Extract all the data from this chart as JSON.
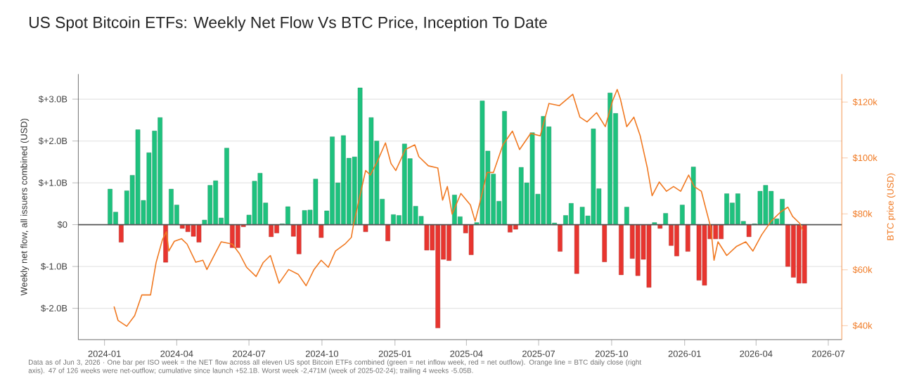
{
  "chart_data": {
    "type": "bar",
    "title": "US Spot Bitcoin ETFs: Weekly Net Flow Vs BTC Price, Inception To Date",
    "ylabel": "Weekly net flow, all issuers combined (USD)",
    "y2label": "BTC price (USD)",
    "annotations": [
      "Data as of Jun 3, 2026 · One bar per ISO week = the NET flow across all eleven US spot Bitcoin ETFs combined (green = net inflow week, red = net outflow). Orange line = BTC daily close (right axis). 47 of 126 weeks were net-outflow; cumulative since launch +52.1B. Worst week -2,471M (week of 2025-02-24); trailing 4 weeks -5.05B."
    ],
    "x": [
      "2024-01-08",
      "2024-01-15",
      "2024-01-22",
      "2024-01-29",
      "2024-02-05",
      "2024-02-12",
      "2024-02-19",
      "2024-02-26",
      "2024-03-04",
      "2024-03-11",
      "2024-03-18",
      "2024-03-25",
      "2024-04-01",
      "2024-04-08",
      "2024-04-15",
      "2024-04-22",
      "2024-04-29",
      "2024-05-06",
      "2024-05-13",
      "2024-05-20",
      "2024-05-27",
      "2024-06-03",
      "2024-06-10",
      "2024-06-17",
      "2024-06-24",
      "2024-07-01",
      "2024-07-08",
      "2024-07-15",
      "2024-07-22",
      "2024-07-29",
      "2024-08-05",
      "2024-08-12",
      "2024-08-19",
      "2024-08-26",
      "2024-09-02",
      "2024-09-09",
      "2024-09-16",
      "2024-09-23",
      "2024-09-30",
      "2024-10-07",
      "2024-10-14",
      "2024-10-21",
      "2024-10-28",
      "2024-11-04",
      "2024-11-11",
      "2024-11-18",
      "2024-11-25",
      "2024-12-02",
      "2024-12-09",
      "2024-12-16",
      "2024-12-23",
      "2024-12-30",
      "2025-01-06",
      "2025-01-13",
      "2025-01-20",
      "2025-01-27",
      "2025-02-03",
      "2025-02-10",
      "2025-02-17",
      "2025-02-24",
      "2025-03-03",
      "2025-03-10",
      "2025-03-17",
      "2025-03-24",
      "2025-03-31",
      "2025-04-07",
      "2025-04-14",
      "2025-04-21",
      "2025-04-28",
      "2025-05-05",
      "2025-05-12",
      "2025-05-19",
      "2025-05-26",
      "2025-06-02",
      "2025-06-09",
      "2025-06-16",
      "2025-06-23",
      "2025-06-30",
      "2025-07-07",
      "2025-07-14",
      "2025-07-21",
      "2025-07-28",
      "2025-08-04",
      "2025-08-11",
      "2025-08-18",
      "2025-08-25",
      "2025-09-01",
      "2025-09-08",
      "2025-09-15",
      "2025-09-22",
      "2025-09-29",
      "2025-10-06",
      "2025-10-13",
      "2025-10-20",
      "2025-10-27",
      "2025-11-03",
      "2025-11-10",
      "2025-11-17",
      "2025-11-24",
      "2025-12-01",
      "2025-12-08",
      "2025-12-15",
      "2025-12-22",
      "2025-12-29",
      "2026-01-05",
      "2026-01-12",
      "2026-01-19",
      "2026-01-26",
      "2026-02-02",
      "2026-02-09",
      "2026-02-16",
      "2026-02-23",
      "2026-03-02",
      "2026-03-09",
      "2026-03-16",
      "2026-03-23",
      "2026-03-30",
      "2026-04-06",
      "2026-04-13",
      "2026-04-20",
      "2026-04-27",
      "2026-05-04",
      "2026-05-11",
      "2026-05-18",
      "2026-05-25",
      "2026-06-01"
    ],
    "series": [
      {
        "values": [
          0.85,
          0.3,
          -0.42,
          0.81,
          1.18,
          2.27,
          0.58,
          1.72,
          2.24,
          2.56,
          -0.9,
          0.85,
          0.47,
          -0.09,
          -0.17,
          -0.28,
          -0.42,
          0.11,
          0.94,
          1.05,
          0.16,
          1.83,
          -0.55,
          -0.55,
          -0.05,
          0.23,
          1.04,
          1.23,
          0.52,
          -0.29,
          -0.2,
          0.02,
          0.43,
          -0.28,
          -0.7,
          0.34,
          0.35,
          1.09,
          -0.31,
          0.33,
          2.1,
          1.0,
          2.13,
          1.59,
          1.62,
          3.27,
          -0.17,
          2.56,
          2.0,
          0.61,
          -0.39,
          0.24,
          0.22,
          1.93,
          1.58,
          0.44,
          0.2,
          -0.61,
          -0.61,
          -2.47,
          -0.83,
          -0.86,
          0.71,
          0.19,
          -0.2,
          -0.72,
          0.05,
          2.96,
          1.76,
          1.21,
          0.56,
          2.71,
          -0.18,
          -0.11,
          1.37,
          1.0,
          2.2,
          0.73,
          2.59,
          2.34,
          0.04,
          -0.64,
          0.22,
          0.51,
          -1.17,
          0.42,
          0.21,
          2.29,
          0.86,
          -0.89,
          3.15,
          2.66,
          -1.2,
          0.42,
          -0.81,
          -1.22,
          -0.83,
          -1.5,
          0.05,
          -0.09,
          0.27,
          -0.5,
          -0.75,
          0.47,
          -0.64,
          1.38,
          -1.33,
          -1.45,
          -0.34,
          -0.34,
          -0.34,
          0.74,
          0.52,
          0.74,
          0.08,
          -0.29,
          0.02,
          0.8,
          0.94,
          0.8,
          0.14,
          0.61,
          -1.0,
          -1.26,
          -1.4,
          -1.4
        ],
        "colors": [
          "#1ec27e",
          "#1ec27e",
          "#e8352f",
          "#1ec27e",
          "#1ec27e",
          "#1ec27e",
          "#1ec27e",
          "#1ec27e",
          "#1ec27e",
          "#1ec27e",
          "#e8352f",
          "#1ec27e",
          "#1ec27e",
          "#e8352f",
          "#e8352f",
          "#e8352f",
          "#e8352f",
          "#1ec27e",
          "#1ec27e",
          "#1ec27e",
          "#1ec27e",
          "#1ec27e",
          "#e8352f",
          "#e8352f",
          "#e8352f",
          "#1ec27e",
          "#1ec27e",
          "#1ec27e",
          "#1ec27e",
          "#e8352f",
          "#e8352f",
          "#1ec27e",
          "#1ec27e",
          "#e8352f",
          "#e8352f",
          "#1ec27e",
          "#1ec27e",
          "#1ec27e",
          "#e8352f",
          "#1ec27e",
          "#1ec27e",
          "#1ec27e",
          "#1ec27e",
          "#1ec27e",
          "#1ec27e",
          "#1ec27e",
          "#e8352f",
          "#1ec27e",
          "#1ec27e",
          "#1ec27e",
          "#e8352f",
          "#1ec27e",
          "#1ec27e",
          "#1ec27e",
          "#1ec27e",
          "#1ec27e",
          "#1ec27e",
          "#e8352f",
          "#e8352f",
          "#e8352f",
          "#e8352f",
          "#e8352f",
          "#1ec27e",
          "#1ec27e",
          "#e8352f",
          "#e8352f",
          "#1ec27e",
          "#1ec27e",
          "#1ec27e",
          "#1ec27e",
          "#1ec27e",
          "#1ec27e",
          "#e8352f",
          "#e8352f",
          "#1ec27e",
          "#1ec27e",
          "#1ec27e",
          "#1ec27e",
          "#1ec27e",
          "#1ec27e",
          "#1ec27e",
          "#e8352f",
          "#1ec27e",
          "#1ec27e",
          "#e8352f",
          "#1ec27e",
          "#1ec27e",
          "#1ec27e",
          "#1ec27e",
          "#e8352f",
          "#1ec27e",
          "#1ec27e",
          "#e8352f",
          "#1ec27e",
          "#e8352f",
          "#e8352f",
          "#e8352f",
          "#e8352f",
          "#1ec27e",
          "#e8352f",
          "#1ec27e",
          "#e8352f",
          "#e8352f",
          "#1ec27e",
          "#e8352f",
          "#1ec27e",
          "#e8352f",
          "#e8352f",
          "#e8352f",
          "#e8352f",
          "#e8352f",
          "#1ec27e",
          "#1ec27e",
          "#1ec27e",
          "#1ec27e",
          "#e8352f",
          "#1ec27e",
          "#1ec27e",
          "#1ec27e",
          "#1ec27e",
          "#1ec27e",
          "#1ec27e",
          "#e8352f",
          "#e8352f",
          "#e8352f",
          "#e8352f"
        ]
      },
      {
        "type": "line",
        "axis": "y2",
        "color": "#f07820",
        "x": [
          "2024-01-13",
          "2024-01-18",
          "2024-01-29",
          "2024-02-08",
          "2024-02-17",
          "2024-02-28",
          "2024-03-06",
          "2024-03-14",
          "2024-03-19",
          "2024-03-22",
          "2024-03-29",
          "2024-04-07",
          "2024-04-14",
          "2024-04-25",
          "2024-05-04",
          "2024-05-09",
          "2024-05-18",
          "2024-05-27",
          "2024-06-10",
          "2024-06-19",
          "2024-06-28",
          "2024-07-10",
          "2024-07-19",
          "2024-07-28",
          "2024-08-08",
          "2024-08-20",
          "2024-09-01",
          "2024-09-11",
          "2024-09-21",
          "2024-09-30",
          "2024-10-09",
          "2024-10-18",
          "2024-10-30",
          "2024-11-07",
          "2024-11-10",
          "2024-11-25",
          "2024-12-01",
          "2024-12-10",
          "2024-12-20",
          "2024-12-27",
          "2025-01-02",
          "2025-01-14",
          "2025-01-26",
          "2025-01-31",
          "2025-02-12",
          "2025-02-24",
          "2025-03-02",
          "2025-03-08",
          "2025-03-14",
          "2025-03-25",
          "2025-04-06",
          "2025-04-12",
          "2025-04-18",
          "2025-04-27",
          "2025-05-05",
          "2025-05-17",
          "2025-05-29",
          "2025-06-07",
          "2025-06-21",
          "2025-07-03",
          "2025-07-14",
          "2025-07-27",
          "2025-08-13",
          "2025-08-22",
          "2025-08-31",
          "2025-09-12",
          "2025-09-23",
          "2025-10-02",
          "2025-10-08",
          "2025-10-12",
          "2025-10-20",
          "2025-10-29",
          "2025-11-06",
          "2025-11-15",
          "2025-11-21",
          "2025-11-30",
          "2025-12-09",
          "2025-12-18",
          "2025-12-27",
          "2026-01-06",
          "2026-01-13",
          "2026-01-22",
          "2026-01-28",
          "2026-02-03",
          "2026-02-07",
          "2026-02-12",
          "2026-02-23",
          "2026-03-07",
          "2026-03-19",
          "2026-03-28",
          "2026-04-08",
          "2026-04-20",
          "2026-05-02",
          "2026-05-11",
          "2026-05-17",
          "2026-05-26",
          "2026-05-30"
        ],
        "values": [
          46.9,
          41.9,
          39.8,
          43.6,
          51.0,
          51.0,
          62.6,
          70.8,
          73.6,
          66.7,
          70.2,
          71.1,
          69.2,
          62.7,
          63.4,
          60.1,
          65.1,
          70.0,
          69.2,
          65.8,
          60.9,
          57.6,
          62.6,
          65.1,
          55.2,
          60.1,
          58.4,
          54.3,
          60.1,
          63.4,
          60.9,
          66.7,
          69.2,
          71.6,
          76.6,
          95.5,
          93.9,
          98.9,
          105.4,
          98.0,
          95.5,
          103.0,
          104.7,
          100.5,
          97.2,
          96.4,
          84.9,
          89.8,
          79.9,
          87.3,
          83.2,
          77.4,
          84.0,
          94.8,
          94.8,
          104.7,
          109.6,
          103.0,
          108.8,
          107.9,
          119.5,
          118.7,
          122.8,
          114.6,
          112.9,
          116.2,
          111.2,
          120.3,
          124.5,
          121.1,
          111.2,
          114.6,
          107.9,
          96.4,
          86.5,
          91.4,
          88.1,
          89.8,
          88.1,
          93.9,
          89.8,
          88.1,
          81.5,
          75.0,
          63.4,
          70.0,
          65.1,
          68.3,
          70.0,
          66.7,
          72.5,
          77.4,
          80.7,
          82.4,
          79.1,
          76.6,
          74.1
        ]
      }
    ],
    "xlim": [
      "2023-11-29",
      "2026-07-18"
    ],
    "xticks": [
      "2024-01",
      "2024-04",
      "2024-07",
      "2024-10",
      "2025-01",
      "2025-04",
      "2025-07",
      "2025-10",
      "2026-01",
      "2026-04",
      "2026-07"
    ],
    "ylim": [
      -2.75,
      3.6
    ],
    "yticks": [
      {
        "value": -2,
        "label": "$-2.0B"
      },
      {
        "value": -1,
        "label": "$-1.0B"
      },
      {
        "value": 0,
        "label": "$0"
      },
      {
        "value": 1,
        "label": "$+1.0B"
      },
      {
        "value": 2,
        "label": "$+2.0B"
      },
      {
        "value": 3,
        "label": "$+3.0B"
      }
    ],
    "y2lim": [
      35,
      130
    ],
    "y2ticks": [
      {
        "value": 40,
        "label": "$40k"
      },
      {
        "value": 60,
        "label": "$60k"
      },
      {
        "value": 80,
        "label": "$80k"
      },
      {
        "value": 100,
        "label": "$100k"
      },
      {
        "value": 120,
        "label": "$120k"
      }
    ],
    "ref_lines": [
      {
        "axis": "y",
        "value": 0,
        "color": "#555555"
      }
    ],
    "grid": "y"
  }
}
